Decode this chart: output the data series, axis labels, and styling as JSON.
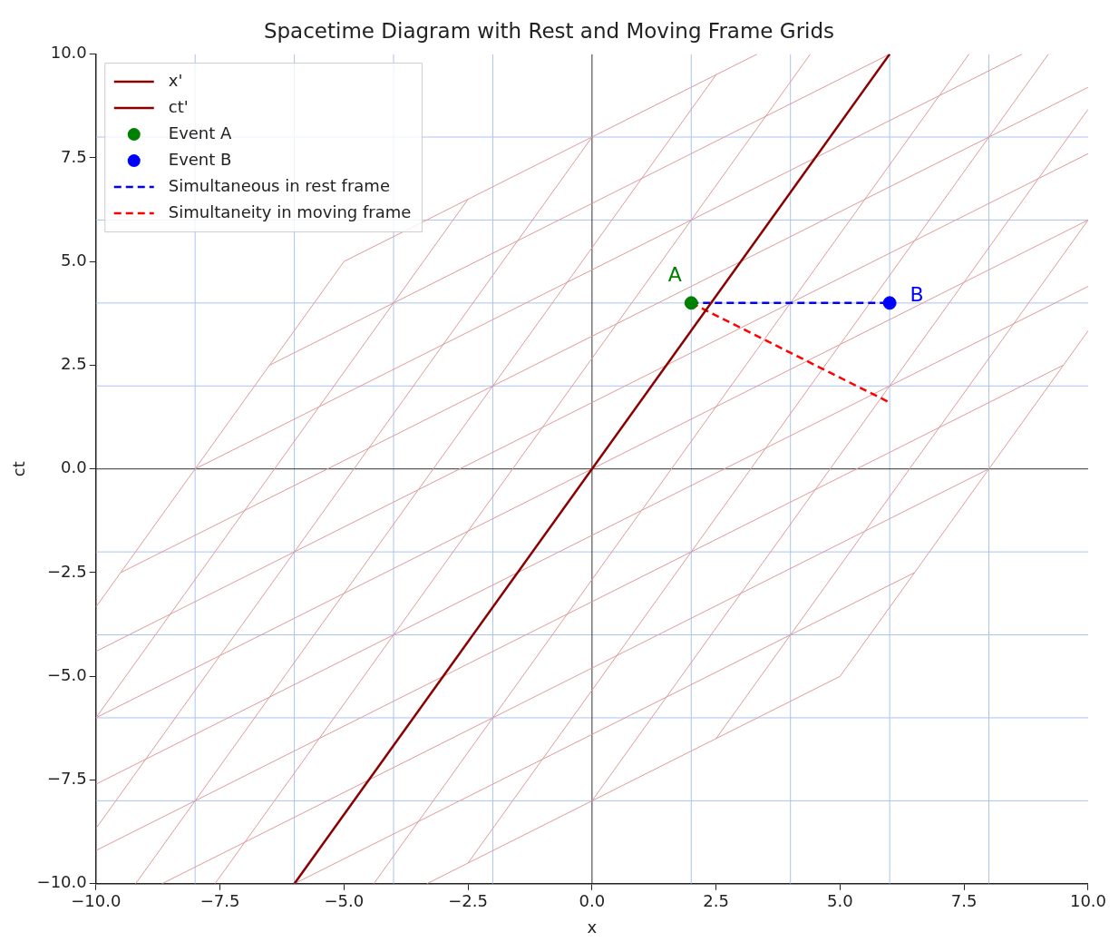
{
  "chart_data": {
    "type": "line",
    "title": "Spacetime Diagram with Rest and Moving Frame Grids",
    "xlabel": "x",
    "ylabel": "ct",
    "xlim": [
      -10,
      10
    ],
    "ylim": [
      -10,
      10
    ],
    "xticks": [
      {
        "value": -10,
        "label": "−10.0"
      },
      {
        "value": -7.5,
        "label": "−7.5"
      },
      {
        "value": -5,
        "label": "−5.0"
      },
      {
        "value": -2.5,
        "label": "−2.5"
      },
      {
        "value": 0,
        "label": "0.0"
      },
      {
        "value": 2.5,
        "label": "2.5"
      },
      {
        "value": 5,
        "label": "5.0"
      },
      {
        "value": 7.5,
        "label": "7.5"
      },
      {
        "value": 10,
        "label": "10.0"
      }
    ],
    "yticks": [
      {
        "value": -10,
        "label": "−10.0"
      },
      {
        "value": -7.5,
        "label": "−7.5"
      },
      {
        "value": -5,
        "label": "−5.0"
      },
      {
        "value": -2.5,
        "label": "−2.5"
      },
      {
        "value": 0,
        "label": "0.0"
      },
      {
        "value": 2.5,
        "label": "2.5"
      },
      {
        "value": 5,
        "label": "5.0"
      },
      {
        "value": 7.5,
        "label": "7.5"
      },
      {
        "value": 10,
        "label": "10.0"
      }
    ],
    "grid": false,
    "legend": "top left",
    "series": [
      {
        "name": "x'",
        "color": "#8b0000"
      },
      {
        "name": "ct'",
        "color": "#8b0000",
        "x": [
          -6,
          6
        ],
        "values": [
          -10,
          10
        ]
      },
      {
        "name": "Event A",
        "type": "scatter",
        "marker": "circle",
        "color": "#008000",
        "x": [
          2
        ],
        "values": [
          4
        ]
      },
      {
        "name": "Event B",
        "type": "scatter",
        "marker": "circle",
        "color": "#0000ff",
        "x": [
          6
        ],
        "values": [
          4
        ]
      },
      {
        "name": "Simultaneous in rest frame",
        "color": "#0000ff",
        "line_style": "dashed",
        "x": [
          2,
          6
        ],
        "values": [
          4,
          4
        ]
      },
      {
        "name": "Simultaneity in moving frame",
        "color": "#ff0000",
        "line_style": "dashed",
        "x": [
          2,
          6
        ],
        "values": [
          4,
          1.6
        ]
      },
      {
        "color": "#e09a9a",
        "x": [
          -3.33,
          5
        ],
        "values": [
          -10,
          -5
        ]
      },
      {
        "color": "#e09a9a",
        "x": [
          -6,
          6.5
        ],
        "values": [
          -10,
          -2.5
        ]
      },
      {
        "color": "#e09a9a",
        "x": [
          -8.67,
          8
        ],
        "values": [
          -10,
          0
        ]
      },
      {
        "color": "#e09a9a",
        "x": [
          -10,
          9.5
        ],
        "values": [
          -9.2,
          2.5
        ]
      },
      {
        "color": "#e09a9a",
        "x": [
          -10,
          10
        ],
        "values": [
          -7.6,
          4.4
        ]
      },
      {
        "color": "#e09a9a",
        "x": [
          -10,
          10
        ],
        "values": [
          -6,
          6
        ]
      },
      {
        "color": "#e09a9a",
        "x": [
          -10,
          10
        ],
        "values": [
          -4.4,
          7.6
        ]
      },
      {
        "color": "#e09a9a",
        "x": [
          -9.5,
          10
        ],
        "values": [
          -2.5,
          9.2
        ]
      },
      {
        "color": "#e09a9a",
        "x": [
          -8,
          8.67
        ],
        "values": [
          0,
          10
        ]
      },
      {
        "color": "#e09a9a",
        "x": [
          -6.5,
          6
        ],
        "values": [
          2.5,
          10
        ]
      },
      {
        "color": "#e09a9a",
        "x": [
          -5,
          3.33
        ],
        "values": [
          5,
          10
        ]
      },
      {
        "color": "#e09a9a",
        "x": [
          -10,
          -5
        ],
        "values": [
          -3.33,
          5
        ]
      },
      {
        "color": "#e09a9a",
        "x": [
          -10,
          -2.5
        ],
        "values": [
          -6,
          6.5
        ]
      },
      {
        "color": "#e09a9a",
        "x": [
          -10,
          0
        ],
        "values": [
          -8.67,
          8
        ]
      },
      {
        "color": "#e09a9a",
        "x": [
          -9.2,
          2.5
        ],
        "values": [
          -10,
          9.5
        ]
      },
      {
        "color": "#e09a9a",
        "x": [
          -7.6,
          4.4
        ],
        "values": [
          -10,
          10
        ]
      },
      {
        "color": "#e09a9a",
        "x": [
          -4.4,
          7.6
        ],
        "values": [
          -10,
          10
        ]
      },
      {
        "color": "#e09a9a",
        "x": [
          -2.5,
          9.2
        ],
        "values": [
          -9.5,
          10
        ]
      },
      {
        "color": "#e09a9a",
        "x": [
          0,
          10
        ],
        "values": [
          -8,
          8.67
        ]
      },
      {
        "color": "#e09a9a",
        "x": [
          2.5,
          10
        ],
        "values": [
          -6.5,
          6
        ]
      },
      {
        "color": "#e09a9a",
        "x": [
          5,
          10
        ],
        "values": [
          -5,
          3.33
        ]
      },
      {
        "color": "#333333",
        "x": [
          0,
          0
        ],
        "values": [
          -10,
          10
        ]
      },
      {
        "color": "#333333",
        "x": [
          -10,
          10
        ],
        "values": [
          0,
          0
        ]
      },
      {
        "color": "#a9c4f2",
        "x": [
          -8,
          -8
        ],
        "values": [
          -10,
          10
        ]
      },
      {
        "color": "#a9c4f2",
        "x": [
          -6,
          -6
        ],
        "values": [
          -10,
          10
        ]
      },
      {
        "color": "#a9c4f2",
        "x": [
          -4,
          -4
        ],
        "values": [
          -10,
          10
        ]
      },
      {
        "color": "#a9c4f2",
        "x": [
          -2,
          -2
        ],
        "values": [
          -10,
          10
        ]
      },
      {
        "color": "#a9c4f2",
        "x": [
          2,
          2
        ],
        "values": [
          -10,
          10
        ]
      },
      {
        "color": "#a9c4f2",
        "x": [
          4,
          4
        ],
        "values": [
          -10,
          10
        ]
      },
      {
        "color": "#a9c4f2",
        "x": [
          6,
          6
        ],
        "values": [
          -10,
          10
        ]
      },
      {
        "color": "#a9c4f2",
        "x": [
          8,
          8
        ],
        "values": [
          -10,
          10
        ]
      },
      {
        "color": "#a9c4f2",
        "x": [
          -10,
          10
        ],
        "values": [
          -8,
          -8
        ]
      },
      {
        "color": "#a9c4f2",
        "x": [
          -10,
          10
        ],
        "values": [
          -6,
          -6
        ]
      },
      {
        "color": "#a9c4f2",
        "x": [
          -10,
          10
        ],
        "values": [
          -4,
          -4
        ]
      },
      {
        "color": "#a9c4f2",
        "x": [
          -10,
          10
        ],
        "values": [
          -2,
          -2
        ]
      },
      {
        "color": "#a9c4f2",
        "x": [
          -10,
          10
        ],
        "values": [
          2,
          2
        ]
      },
      {
        "color": "#a9c4f2",
        "x": [
          -10,
          10
        ],
        "values": [
          4,
          4
        ]
      },
      {
        "color": "#a9c4f2",
        "x": [
          -10,
          10
        ],
        "values": [
          6,
          6
        ]
      },
      {
        "color": "#a9c4f2",
        "x": [
          -10,
          10
        ],
        "values": [
          8,
          8
        ]
      }
    ],
    "annotations": [
      {
        "text": "A",
        "x": 2,
        "y": 4
      },
      {
        "text": "B",
        "x": 6,
        "y": 4
      }
    ]
  }
}
